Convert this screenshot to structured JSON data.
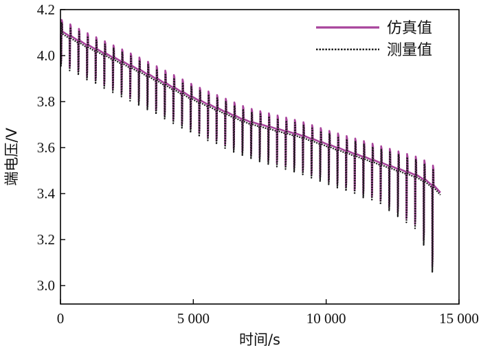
{
  "chart_data": {
    "type": "line",
    "xlabel": "时间/s",
    "ylabel": "端电压/V",
    "xlim": [
      0,
      15000
    ],
    "ylim": [
      2.92,
      4.2
    ],
    "xticks": [
      0,
      5000,
      10000,
      15000
    ],
    "xtick_labels": [
      "0",
      "5 000",
      "10 000",
      "15 000"
    ],
    "yticks": [
      3.0,
      3.2,
      3.4,
      3.6,
      3.8,
      4.0,
      4.2
    ],
    "ytick_labels": [
      "3.0",
      "3.2",
      "3.4",
      "3.6",
      "3.8",
      "4.0",
      "4.2"
    ],
    "grid": false,
    "legend_position": "top-right",
    "pulse_test": {
      "pulse_count": 44,
      "period_s": 325,
      "rest_voltage": [
        [
          0,
          4.09
        ],
        [
          1000,
          4.03
        ],
        [
          3000,
          3.92
        ],
        [
          5000,
          3.8
        ],
        [
          7000,
          3.7
        ],
        [
          9000,
          3.64
        ],
        [
          11000,
          3.56
        ],
        [
          12500,
          3.5
        ],
        [
          13500,
          3.46
        ],
        [
          14000,
          3.42
        ],
        [
          14400,
          3.38
        ]
      ],
      "discharge_drop_v": [
        [
          0,
          0.13
        ],
        [
          7000,
          0.14
        ],
        [
          12000,
          0.16
        ],
        [
          13500,
          0.22
        ],
        [
          14000,
          0.36
        ],
        [
          14400,
          0.36
        ]
      ],
      "charge_rise_v": [
        [
          0,
          0.06
        ],
        [
          10000,
          0.07
        ],
        [
          13500,
          0.09
        ],
        [
          14400,
          0.1
        ]
      ]
    },
    "series": [
      {
        "name": "仿真值",
        "color": "#a8449c",
        "style": "solid"
      },
      {
        "name": "测量值",
        "color": "#1a1a1a",
        "style": "dotted"
      }
    ]
  }
}
